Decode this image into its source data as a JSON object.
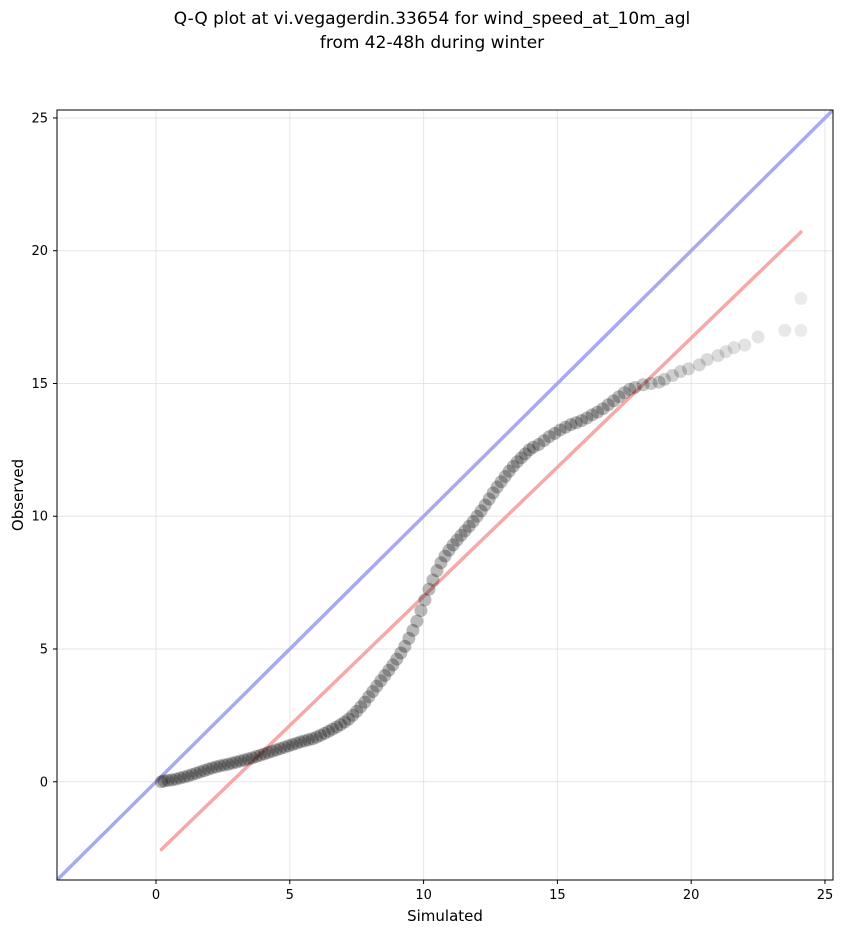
{
  "chart_data": {
    "type": "scatter",
    "title_lines": [
      "Q-Q plot at vi.vegagerdin.33654 for wind_speed_at_10m_agl",
      "from 42-48h during winter"
    ],
    "xlabel": "Simulated",
    "ylabel": "Observed",
    "xlim": [
      -3.7,
      25.3
    ],
    "ylim": [
      -3.7,
      25.3
    ],
    "x_ticks": [
      0,
      5,
      10,
      15,
      20,
      25
    ],
    "y_ticks": [
      0,
      5,
      10,
      15,
      20,
      25
    ],
    "grid": true,
    "identity_line": {
      "from": [
        -3.7,
        -3.7
      ],
      "to": [
        25.3,
        25.3
      ],
      "color": "#a9a9f2"
    },
    "fit_line": {
      "from": [
        0.2,
        -2.55
      ],
      "to": [
        24.1,
        20.7
      ],
      "color": "#f5a9a9"
    },
    "point_color": "#000000",
    "series": [
      {
        "points": [
          [
            0.2,
            0.0
          ],
          [
            0.3,
            0.03
          ],
          [
            0.45,
            0.05
          ],
          [
            0.6,
            0.07
          ],
          [
            0.75,
            0.1
          ],
          [
            0.9,
            0.14
          ],
          [
            1.05,
            0.18
          ],
          [
            1.2,
            0.22
          ],
          [
            1.35,
            0.27
          ],
          [
            1.5,
            0.32
          ],
          [
            1.65,
            0.37
          ],
          [
            1.8,
            0.42
          ],
          [
            1.95,
            0.47
          ],
          [
            2.1,
            0.52
          ],
          [
            2.25,
            0.56
          ],
          [
            2.4,
            0.6
          ],
          [
            2.55,
            0.63
          ],
          [
            2.7,
            0.66
          ],
          [
            2.85,
            0.7
          ],
          [
            3.0,
            0.74
          ],
          [
            3.15,
            0.78
          ],
          [
            3.3,
            0.82
          ],
          [
            3.45,
            0.86
          ],
          [
            3.6,
            0.9
          ],
          [
            3.75,
            0.95
          ],
          [
            3.9,
            1.0
          ],
          [
            4.05,
            1.05
          ],
          [
            4.2,
            1.1
          ],
          [
            4.35,
            1.15
          ],
          [
            4.5,
            1.2
          ],
          [
            4.65,
            1.25
          ],
          [
            4.8,
            1.3
          ],
          [
            4.95,
            1.35
          ],
          [
            5.1,
            1.4
          ],
          [
            5.25,
            1.45
          ],
          [
            5.4,
            1.5
          ],
          [
            5.55,
            1.54
          ],
          [
            5.7,
            1.58
          ],
          [
            5.85,
            1.62
          ],
          [
            6.0,
            1.68
          ],
          [
            6.15,
            1.75
          ],
          [
            6.3,
            1.82
          ],
          [
            6.45,
            1.9
          ],
          [
            6.6,
            1.98
          ],
          [
            6.75,
            2.06
          ],
          [
            6.9,
            2.15
          ],
          [
            7.05,
            2.25
          ],
          [
            7.2,
            2.36
          ],
          [
            7.35,
            2.5
          ],
          [
            7.5,
            2.65
          ],
          [
            7.65,
            2.82
          ],
          [
            7.8,
            3.0
          ],
          [
            7.95,
            3.2
          ],
          [
            8.1,
            3.4
          ],
          [
            8.25,
            3.6
          ],
          [
            8.4,
            3.8
          ],
          [
            8.55,
            4.0
          ],
          [
            8.7,
            4.2
          ],
          [
            8.85,
            4.4
          ],
          [
            9.0,
            4.62
          ],
          [
            9.15,
            4.85
          ],
          [
            9.3,
            5.1
          ],
          [
            9.45,
            5.4
          ],
          [
            9.6,
            5.7
          ],
          [
            9.75,
            6.05
          ],
          [
            9.9,
            6.45
          ],
          [
            10.05,
            6.85
          ],
          [
            10.2,
            7.25
          ],
          [
            10.35,
            7.6
          ],
          [
            10.5,
            7.95
          ],
          [
            10.65,
            8.25
          ],
          [
            10.8,
            8.5
          ],
          [
            10.95,
            8.72
          ],
          [
            11.1,
            8.92
          ],
          [
            11.25,
            9.1
          ],
          [
            11.4,
            9.28
          ],
          [
            11.55,
            9.45
          ],
          [
            11.7,
            9.62
          ],
          [
            11.85,
            9.8
          ],
          [
            12.0,
            10.0
          ],
          [
            12.15,
            10.2
          ],
          [
            12.3,
            10.42
          ],
          [
            12.45,
            10.65
          ],
          [
            12.6,
            10.88
          ],
          [
            12.75,
            11.1
          ],
          [
            12.9,
            11.3
          ],
          [
            13.05,
            11.5
          ],
          [
            13.2,
            11.7
          ],
          [
            13.35,
            11.88
          ],
          [
            13.5,
            12.05
          ],
          [
            13.65,
            12.2
          ],
          [
            13.8,
            12.35
          ],
          [
            13.95,
            12.5
          ],
          [
            14.1,
            12.6
          ],
          [
            14.3,
            12.7
          ],
          [
            14.5,
            12.85
          ],
          [
            14.7,
            13.0
          ],
          [
            14.9,
            13.12
          ],
          [
            15.1,
            13.25
          ],
          [
            15.3,
            13.35
          ],
          [
            15.5,
            13.45
          ],
          [
            15.7,
            13.52
          ],
          [
            15.9,
            13.6
          ],
          [
            16.1,
            13.7
          ],
          [
            16.3,
            13.82
          ],
          [
            16.5,
            13.92
          ],
          [
            16.7,
            14.05
          ],
          [
            16.9,
            14.2
          ],
          [
            17.1,
            14.35
          ],
          [
            17.3,
            14.5
          ],
          [
            17.5,
            14.65
          ],
          [
            17.7,
            14.78
          ],
          [
            17.9,
            14.85
          ],
          [
            18.2,
            14.95
          ],
          [
            18.5,
            15.0
          ],
          [
            18.8,
            15.05
          ],
          [
            19.0,
            15.15
          ],
          [
            19.3,
            15.3
          ],
          [
            19.6,
            15.45
          ],
          [
            19.9,
            15.55
          ],
          [
            20.3,
            15.7
          ],
          [
            20.6,
            15.9
          ],
          [
            21.0,
            16.05
          ],
          [
            21.3,
            16.2
          ],
          [
            21.6,
            16.35
          ],
          [
            22.0,
            16.45
          ],
          [
            22.5,
            16.75
          ],
          [
            23.5,
            17.0
          ],
          [
            24.1,
            17.0
          ],
          [
            24.1,
            18.2
          ]
        ]
      }
    ]
  }
}
